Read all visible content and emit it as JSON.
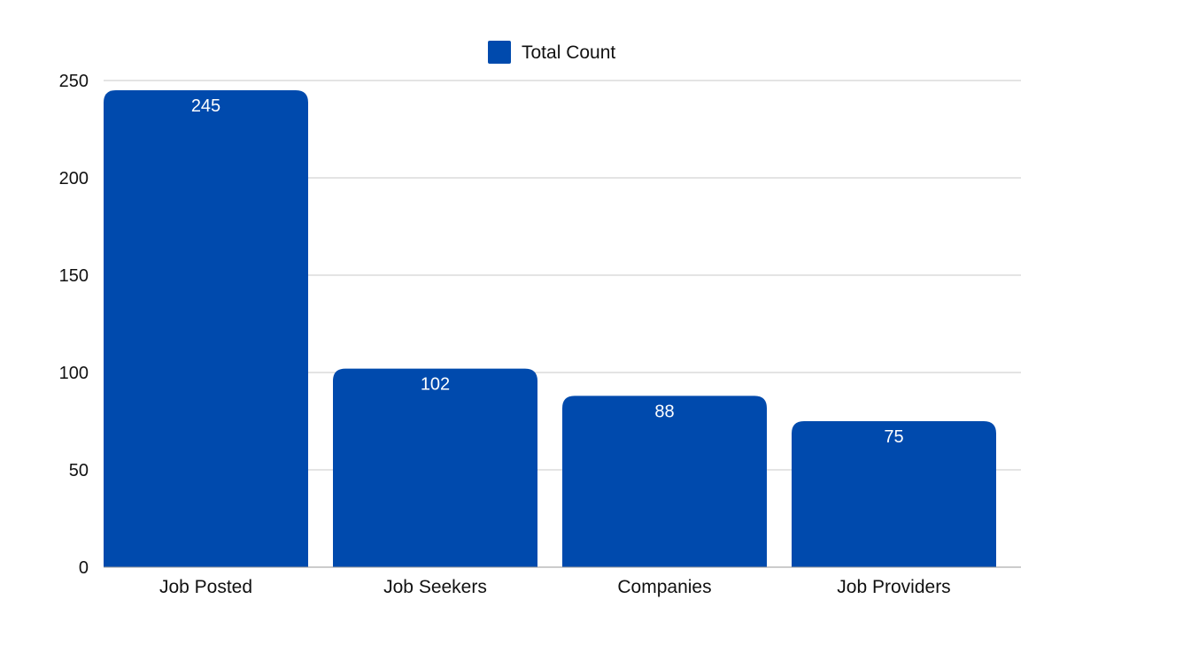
{
  "chart_data": {
    "type": "bar",
    "categories": [
      "Job Posted",
      "Job Seekers",
      "Companies",
      "Job Providers"
    ],
    "series": [
      {
        "name": "Total Count",
        "values": [
          245,
          102,
          88,
          75
        ],
        "color": "#004aad"
      }
    ],
    "title": "",
    "xlabel": "",
    "ylabel": "",
    "ylim": [
      0,
      250
    ],
    "yticks": [
      0,
      50,
      100,
      150,
      200,
      250
    ],
    "grid": true,
    "legend": "top-center",
    "data_labels": true
  }
}
